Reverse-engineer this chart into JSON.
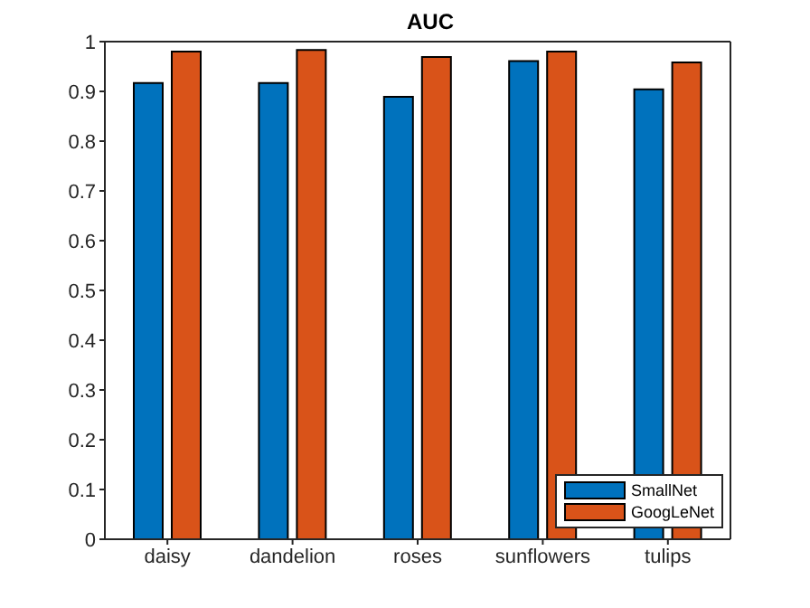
{
  "chart_data": {
    "type": "bar",
    "title": "AUC",
    "categories": [
      "daisy",
      "dandelion",
      "roses",
      "sunflowers",
      "tulips"
    ],
    "series": [
      {
        "name": "SmallNet",
        "color": "#0072bd",
        "values": [
          0.917,
          0.917,
          0.889,
          0.961,
          0.904
        ]
      },
      {
        "name": "GoogLeNet",
        "color": "#d95319",
        "values": [
          0.98,
          0.983,
          0.969,
          0.98,
          0.958
        ]
      }
    ],
    "ylim": [
      0,
      1
    ],
    "yticks": [
      0,
      0.1,
      0.2,
      0.3,
      0.4,
      0.5,
      0.6,
      0.7,
      0.8,
      0.9,
      1
    ],
    "legend": "bottom right"
  }
}
